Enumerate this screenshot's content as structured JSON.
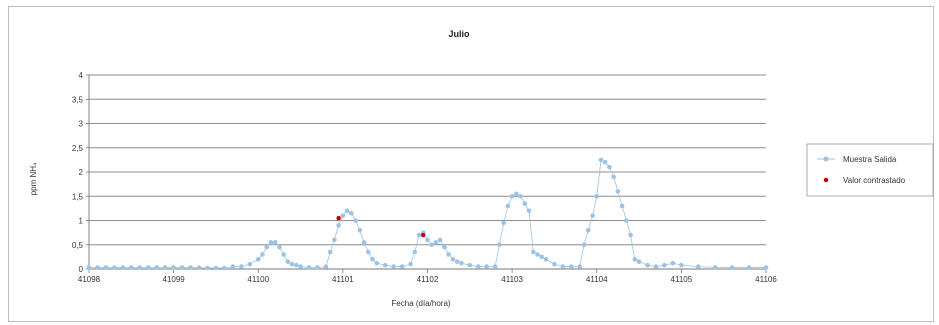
{
  "chart_data": {
    "type": "scatter",
    "title": "Julio",
    "xlabel": "Fecha (día/hora)",
    "ylabel": "ppm NH₄",
    "xlim": [
      41098,
      41106
    ],
    "ylim": [
      0,
      4
    ],
    "x_ticks": [
      "41098",
      "41099",
      "41100",
      "41101",
      "41102",
      "41103",
      "41104",
      "41105",
      "41106"
    ],
    "y_ticks": [
      "0",
      "0,5",
      "1",
      "1,5",
      "2",
      "2,5",
      "3",
      "3,5",
      "4"
    ],
    "grid": "horizontal",
    "legend_position": "right",
    "series": [
      {
        "name": "Muestra Salida",
        "color": "#9cc3e6",
        "style": "line-markers",
        "x": [
          41098,
          41098.1,
          41098.2,
          41098.3,
          41098.4,
          41098.5,
          41098.6,
          41098.7,
          41098.8,
          41098.9,
          41099,
          41099.1,
          41099.2,
          41099.3,
          41099.4,
          41099.5,
          41099.6,
          41099.7,
          41099.8,
          41099.9,
          41100,
          41100.05,
          41100.1,
          41100.15,
          41100.2,
          41100.25,
          41100.3,
          41100.35,
          41100.4,
          41100.45,
          41100.5,
          41100.6,
          41100.7,
          41100.8,
          41100.85,
          41100.9,
          41100.95,
          41101,
          41101.05,
          41101.1,
          41101.15,
          41101.2,
          41101.25,
          41101.3,
          41101.35,
          41101.4,
          41101.5,
          41101.6,
          41101.7,
          41101.8,
          41101.85,
          41101.9,
          41101.95,
          41102,
          41102.05,
          41102.1,
          41102.15,
          41102.2,
          41102.25,
          41102.3,
          41102.35,
          41102.4,
          41102.5,
          41102.6,
          41102.7,
          41102.8,
          41102.85,
          41102.9,
          41102.95,
          41103,
          41103.05,
          41103.1,
          41103.15,
          41103.2,
          41103.25,
          41103.3,
          41103.35,
          41103.4,
          41103.5,
          41103.6,
          41103.7,
          41103.8,
          41103.85,
          41103.9,
          41103.95,
          41104,
          41104.05,
          41104.1,
          41104.15,
          41104.2,
          41104.25,
          41104.3,
          41104.35,
          41104.4,
          41104.45,
          41104.5,
          41104.6,
          41104.7,
          41104.8,
          41104.9,
          41105,
          41105.2,
          41105.4,
          41105.6,
          41105.8,
          41106
        ],
        "y": [
          0.03,
          0.03,
          0.03,
          0.03,
          0.03,
          0.03,
          0.03,
          0.03,
          0.03,
          0.03,
          0.03,
          0.03,
          0.03,
          0.03,
          0.02,
          0.02,
          0.02,
          0.05,
          0.05,
          0.1,
          0.2,
          0.3,
          0.45,
          0.55,
          0.55,
          0.45,
          0.3,
          0.15,
          0.1,
          0.08,
          0.05,
          0.03,
          0.03,
          0.05,
          0.35,
          0.6,
          0.9,
          1.1,
          1.2,
          1.15,
          1.0,
          0.8,
          0.55,
          0.35,
          0.2,
          0.12,
          0.08,
          0.05,
          0.05,
          0.1,
          0.35,
          0.7,
          0.75,
          0.6,
          0.5,
          0.55,
          0.6,
          0.45,
          0.3,
          0.2,
          0.15,
          0.12,
          0.08,
          0.05,
          0.05,
          0.05,
          0.5,
          0.95,
          1.3,
          1.5,
          1.55,
          1.5,
          1.35,
          1.2,
          0.35,
          0.3,
          0.25,
          0.2,
          0.1,
          0.05,
          0.05,
          0.05,
          0.5,
          0.8,
          1.1,
          1.5,
          2.25,
          2.2,
          2.1,
          1.9,
          1.6,
          1.3,
          1.0,
          0.7,
          0.2,
          0.15,
          0.08,
          0.05,
          0.08,
          0.12,
          0.08,
          0.05,
          0.03,
          0.03,
          0.03,
          0.03
        ]
      },
      {
        "name": "Valor contrastado",
        "color": "#c00000",
        "style": "markers",
        "x": [
          41100.95,
          41101.95
        ],
        "y": [
          1.05,
          0.7
        ]
      }
    ]
  }
}
